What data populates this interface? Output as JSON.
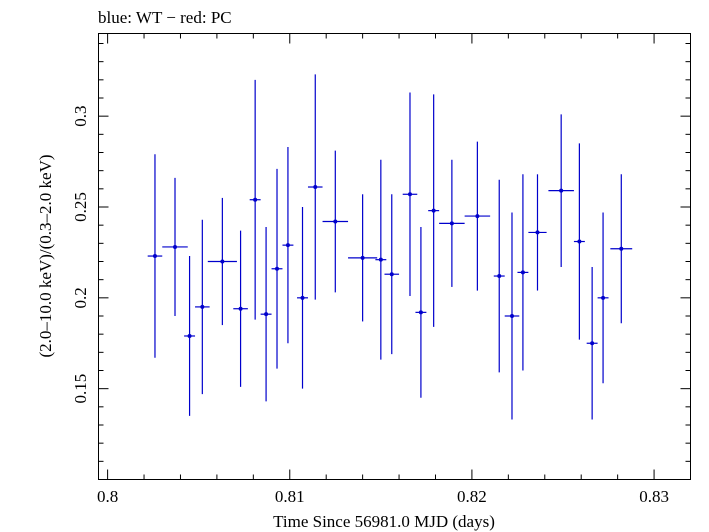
{
  "chart_data": {
    "type": "scatter",
    "title": "blue: WT − red: PC",
    "xlabel": "Time Since 56981.0 MJD (days)",
    "ylabel": "(2.0–10.0 keV)/(0.3–2.0 keV)",
    "xlim": [
      0.7995,
      0.832
    ],
    "ylim": [
      0.1,
      0.3455
    ],
    "x_ticks": [
      {
        "value": 0.8,
        "label": "0.8"
      },
      {
        "value": 0.81,
        "label": "0.81"
      },
      {
        "value": 0.82,
        "label": "0.82"
      },
      {
        "value": 0.83,
        "label": "0.83"
      }
    ],
    "y_ticks": [
      {
        "value": 0.15,
        "label": "0.15"
      },
      {
        "value": 0.2,
        "label": "0.2"
      },
      {
        "value": 0.25,
        "label": "0.25"
      },
      {
        "value": 0.3,
        "label": "0.3"
      }
    ],
    "series": [
      {
        "color": "#0000cc",
        "points": [
          {
            "x": 0.8026,
            "xerr": 0.0004,
            "y": 0.223,
            "yerr": 0.056
          },
          {
            "x": 0.8037,
            "xerr": 0.0007,
            "y": 0.228,
            "yerr": 0.038
          },
          {
            "x": 0.8045,
            "xerr": 0.0003,
            "y": 0.179,
            "yerr": 0.044
          },
          {
            "x": 0.8052,
            "xerr": 0.0004,
            "y": 0.195,
            "yerr": 0.048
          },
          {
            "x": 0.8063,
            "xerr": 0.0008,
            "y": 0.22,
            "yerr": 0.035
          },
          {
            "x": 0.8073,
            "xerr": 0.0004,
            "y": 0.194,
            "yerr": 0.043
          },
          {
            "x": 0.8081,
            "xerr": 0.0003,
            "y": 0.254,
            "yerr": 0.066
          },
          {
            "x": 0.8087,
            "xerr": 0.0003,
            "y": 0.191,
            "yerr": 0.048
          },
          {
            "x": 0.8093,
            "xerr": 0.0003,
            "y": 0.216,
            "yerr": 0.055
          },
          {
            "x": 0.8099,
            "xerr": 0.0003,
            "y": 0.229,
            "yerr": 0.054
          },
          {
            "x": 0.8107,
            "xerr": 0.0003,
            "y": 0.2,
            "yerr": 0.05
          },
          {
            "x": 0.8114,
            "xerr": 0.0004,
            "y": 0.261,
            "yerr": 0.062
          },
          {
            "x": 0.8125,
            "xerr": 0.0007,
            "y": 0.242,
            "yerr": 0.039
          },
          {
            "x": 0.814,
            "xerr": 0.0008,
            "y": 0.222,
            "yerr": 0.035
          },
          {
            "x": 0.815,
            "xerr": 0.0003,
            "y": 0.221,
            "yerr": 0.055
          },
          {
            "x": 0.8156,
            "xerr": 0.0004,
            "y": 0.213,
            "yerr": 0.044
          },
          {
            "x": 0.8166,
            "xerr": 0.0004,
            "y": 0.257,
            "yerr": 0.056
          },
          {
            "x": 0.8172,
            "xerr": 0.0003,
            "y": 0.192,
            "yerr": 0.047
          },
          {
            "x": 0.8179,
            "xerr": 0.0003,
            "y": 0.248,
            "yerr": 0.064
          },
          {
            "x": 0.8189,
            "xerr": 0.0007,
            "y": 0.241,
            "yerr": 0.035
          },
          {
            "x": 0.8203,
            "xerr": 0.0007,
            "y": 0.245,
            "yerr": 0.041
          },
          {
            "x": 0.8215,
            "xerr": 0.0003,
            "y": 0.212,
            "yerr": 0.053
          },
          {
            "x": 0.8222,
            "xerr": 0.0004,
            "y": 0.19,
            "yerr": 0.057
          },
          {
            "x": 0.8228,
            "xerr": 0.0003,
            "y": 0.214,
            "yerr": 0.054
          },
          {
            "x": 0.8236,
            "xerr": 0.0005,
            "y": 0.236,
            "yerr": 0.032
          },
          {
            "x": 0.8249,
            "xerr": 0.0007,
            "y": 0.259,
            "yerr": 0.042
          },
          {
            "x": 0.8259,
            "xerr": 0.0003,
            "y": 0.231,
            "yerr": 0.054
          },
          {
            "x": 0.8266,
            "xerr": 0.0003,
            "y": 0.175,
            "yerr": 0.042
          },
          {
            "x": 0.8272,
            "xerr": 0.0003,
            "y": 0.2,
            "yerr": 0.047
          },
          {
            "x": 0.8282,
            "xerr": 0.0006,
            "y": 0.227,
            "yerr": 0.041
          }
        ]
      }
    ]
  }
}
